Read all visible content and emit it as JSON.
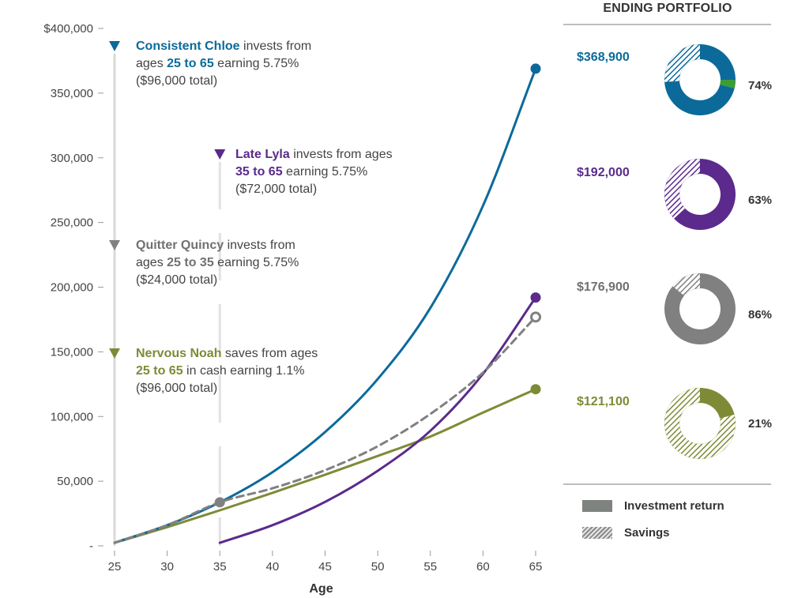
{
  "chart_data": {
    "type": "line",
    "xlabel": "Age",
    "ylabel": "",
    "xlim": [
      25,
      65
    ],
    "ylim": [
      0,
      400000
    ],
    "x_ticks": [
      25,
      30,
      35,
      40,
      45,
      50,
      55,
      60,
      65
    ],
    "y_ticks": [
      0,
      50000,
      100000,
      150000,
      200000,
      250000,
      300000,
      350000,
      400000
    ],
    "y_tick_labels": [
      "-",
      "50,000",
      "100,000",
      "150,000",
      "200,000",
      "250,000",
      "300,000",
      "350,000",
      "$400,000"
    ],
    "grid": false,
    "series": [
      {
        "name": "Consistent Chloe",
        "color": "#0b6a9a",
        "dashed": false,
        "marker": "filled",
        "x": [
          25,
          30,
          35,
          40,
          45,
          50,
          55,
          60,
          65
        ],
        "y": [
          2400,
          16000,
          33700,
          57000,
          88000,
          129000,
          184000,
          263000,
          368900
        ]
      },
      {
        "name": "Late Lyla",
        "color": "#5b2a8c",
        "dashed": false,
        "marker": "filled",
        "x": [
          35,
          40,
          45,
          50,
          55,
          60,
          65
        ],
        "y": [
          2400,
          16000,
          34000,
          58000,
          89000,
          133000,
          192000
        ]
      },
      {
        "name": "Quitter Quincy",
        "color": "#808080",
        "dashed": true,
        "marker": "open",
        "x": [
          25,
          30,
          35,
          40,
          45,
          50,
          55,
          60,
          65
        ],
        "y": [
          2400,
          16000,
          33700,
          44500,
          58500,
          77000,
          102000,
          134000,
          176900
        ]
      },
      {
        "name": "Nervous Noah",
        "color": "#7f8a36",
        "dashed": false,
        "marker": "filled",
        "x": [
          25,
          30,
          35,
          40,
          45,
          50,
          55,
          60,
          65
        ],
        "y": [
          2400,
          14500,
          27500,
          41000,
          55000,
          69500,
          84500,
          103000,
          121100
        ]
      }
    ],
    "highlight_point": {
      "x": 35,
      "y": 33700,
      "color": "#808080"
    },
    "start_markers": [
      {
        "series": "Consistent Chloe",
        "x": 25,
        "color": "#0b6a9a"
      },
      {
        "series": "Late Lyla",
        "x": 35,
        "color": "#5b2a8c"
      },
      {
        "series": "Quitter Quincy",
        "x": 25,
        "color": "#808080"
      },
      {
        "series": "Nervous Noah",
        "x": 25,
        "color": "#7f8a36"
      }
    ]
  },
  "annotations": {
    "chloe": {
      "name": "Consistent Chloe",
      "t1": " invests from",
      "t2": "ages ",
      "ages": "25 to 65",
      "t3": " earning 5.75%",
      "total": "($96,000 total)"
    },
    "lyla": {
      "name": "Late Lyla",
      "t1": " invests from ages",
      "ages": "35 to 65",
      "t3": " earning 5.75%",
      "total": "($72,000 total)"
    },
    "quincy": {
      "name": "Quitter Quincy",
      "t1": " invests from",
      "t2": "ages ",
      "ages": "25 to 35",
      "t3": " earning 5.75%",
      "total": "($24,000 total)"
    },
    "noah": {
      "name": "Nervous Noah",
      "t1": " saves from ages",
      "ages": "25 to 65",
      "t3": " in cash earning 1.1%",
      "total": "($96,000 total)"
    }
  },
  "ending_portfolio": {
    "title": "ENDING PORTFOLIO",
    "items": [
      {
        "value": "$368,900",
        "pct_label": "74%",
        "investment_return_share": 0.74,
        "color": "#0b6a9a",
        "accent": "#3d9b3a"
      },
      {
        "value": "$192,000",
        "pct_label": "63%",
        "investment_return_share": 0.63,
        "color": "#5b2a8c"
      },
      {
        "value": "$176,900",
        "pct_label": "86%",
        "investment_return_share": 0.86,
        "color": "#808080"
      },
      {
        "value": "$121,100",
        "pct_label": "21%",
        "investment_return_share": 0.21,
        "color": "#7f8a36"
      }
    ],
    "legend": [
      {
        "label": "Investment return",
        "style": "solid"
      },
      {
        "label": "Savings",
        "style": "hatched"
      }
    ]
  }
}
